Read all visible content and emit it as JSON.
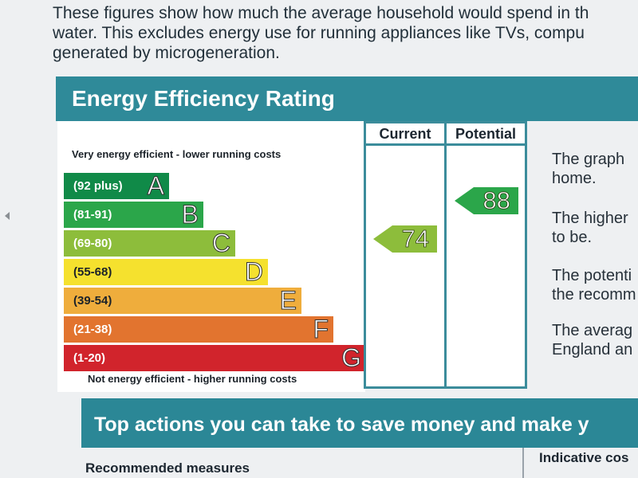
{
  "intro": {
    "line1": "These figures show how much the average household would spend in th",
    "line2": "water. This excludes energy use for running appliances like TVs, compu",
    "line3": "generated by microgeneration."
  },
  "energy_banner": "Energy Efficiency Rating",
  "columns": {
    "current": "Current",
    "potential": "Potential"
  },
  "top_caption": "Very energy efficient - lower running costs",
  "bottom_caption": "Not energy efficient - higher running costs",
  "bands": [
    {
      "range": "(92 plus)",
      "letter": "A",
      "color": "#108a48"
    },
    {
      "range": "(81-91)",
      "letter": "B",
      "color": "#2ba64a"
    },
    {
      "range": "(69-80)",
      "letter": "C",
      "color": "#8dbd3b"
    },
    {
      "range": "(55-68)",
      "letter": "D",
      "color": "#f5e12e"
    },
    {
      "range": "(39-54)",
      "letter": "E",
      "color": "#efad3c"
    },
    {
      "range": "(21-38)",
      "letter": "F",
      "color": "#e2742f"
    },
    {
      "range": "(1-20)",
      "letter": "G",
      "color": "#d1242c"
    }
  ],
  "ratings": {
    "current": {
      "value": "74",
      "color": "#8dbd3b"
    },
    "potential": {
      "value": "88",
      "color": "#2ba64a"
    }
  },
  "side_text": [
    {
      "line1": "The graph",
      "line2": "home."
    },
    {
      "line1": "The higher",
      "line2": "to be."
    },
    {
      "line1": "The potenti",
      "line2": "the recomm"
    },
    {
      "line1": "The averag",
      "line2": "England an"
    }
  ],
  "actions_banner": "Top actions you can take to save money and make y",
  "recommended_measures": "Recommended measures",
  "indicative_cost": "Indicative cos"
}
